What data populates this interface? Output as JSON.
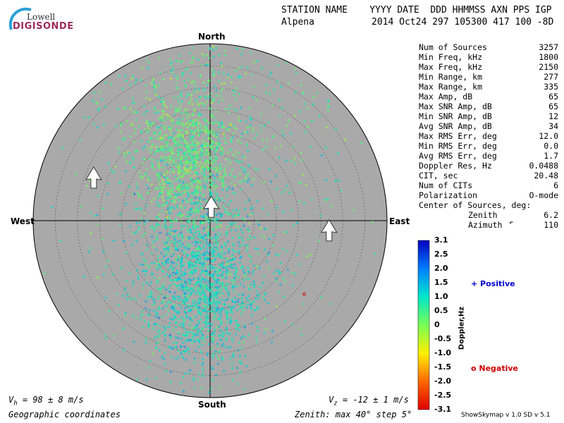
{
  "logo": {
    "line1": "Lowell",
    "line2": "DIGISONDE"
  },
  "header": {
    "labels": "STATION NAME    YYYY DATE  DDD HHMMSS AXN PPS IGP",
    "station": "Alpena",
    "values": "2014 Oct24 297 105300 417 100 -8D"
  },
  "stats": [
    {
      "key": "Num of Sources",
      "value": "3257"
    },
    {
      "key": "Min Freq, kHz",
      "value": "1800"
    },
    {
      "key": "Max Freq, kHz",
      "value": "2150"
    },
    {
      "key": "Min Range, km",
      "value": "277"
    },
    {
      "key": "Max Range, km",
      "value": "335"
    },
    {
      "key": "Max Amp, dB",
      "value": "65"
    },
    {
      "key": "Max SNR Amp, dB",
      "value": "65"
    },
    {
      "key": "Min SNR Amp, dB",
      "value": "12"
    },
    {
      "key": "Avg SNR Amp, dB",
      "value": "34"
    },
    {
      "key": "Max RMS Err, deg",
      "value": "12.0"
    },
    {
      "key": "Min RMS Err, deg",
      "value": "0.0"
    },
    {
      "key": "Avg RMS Err, deg",
      "value": "1.7"
    },
    {
      "key": "Doppler Res, Hz",
      "value": "0.0488"
    },
    {
      "key": "CIT, sec",
      "value": "20.48"
    },
    {
      "key": "Num of CITs",
      "value": "6"
    },
    {
      "key": "Polarization",
      "value": "O-mode"
    }
  ],
  "center": {
    "title": "Center of Sources, deg:",
    "zenith_label": "Zenith",
    "zenith_value": "6.2",
    "azimuth_label": "Azimuth",
    "azimuth_value": "110"
  },
  "compass": {
    "north": "North",
    "south": "South",
    "east": "East",
    "west": "West"
  },
  "colorbar": {
    "title": "Doppler,Hz",
    "ticks": [
      "3.1",
      "2.5",
      "2.0",
      "1.5",
      "1.0",
      "0.5",
      "0",
      "-0.5",
      "-1.0",
      "-1.5",
      "-2.0",
      "-2.5",
      "-3.1"
    ]
  },
  "legend": {
    "positive": "+ Positive",
    "negative": "o Negative"
  },
  "velocity": {
    "vh_sym": "V",
    "vh_sub": "h",
    "vh_rest": " = 98 ± 8 m/s",
    "vz_sym": "V",
    "vz_sub": "z",
    "vz_rest": " = -12 ± 1 m/s"
  },
  "footer": {
    "coords": "Geographic coordinates",
    "zenith": "Zenith: max 40°  step 5°",
    "version": "ShowSkymap v 1.0   SD v 5.1"
  },
  "colors": {
    "plot_bg": "#a9a9a9",
    "positive": "#0000cc",
    "negative": "#cc0000"
  },
  "chart_data": {
    "type": "scatter",
    "projection": "polar-zenith",
    "zenith_max_deg": 40,
    "zenith_step_deg": 5,
    "num_sources": 3257,
    "clusters": [
      {
        "name": "",
        "zenith_deg": 16,
        "azimuth_deg": 340,
        "doppler_hz": 0.3,
        "count": 900,
        "spread_deg": 8
      },
      {
        "name": "",
        "zenith_deg": 14,
        "azimuth_deg": 190,
        "doppler_hz": 1.0,
        "count": 1500,
        "spread_deg": 10
      },
      {
        "name": "",
        "zenith_deg": 22,
        "azimuth_deg": 0,
        "doppler_hz": 0.6,
        "count": 857,
        "spread_deg": 22
      }
    ],
    "arrows": [
      {
        "zenith_deg": 28,
        "azimuth_deg": 290
      },
      {
        "zenith_deg": 3,
        "azimuth_deg": 5
      },
      {
        "zenith_deg": 27,
        "azimuth_deg": 95
      }
    ],
    "negative_points": [
      {
        "zenith_deg": 27,
        "azimuth_deg": 128,
        "doppler_hz": -1.9
      }
    ],
    "colorbar_range": [
      -3.1,
      3.1
    ]
  }
}
